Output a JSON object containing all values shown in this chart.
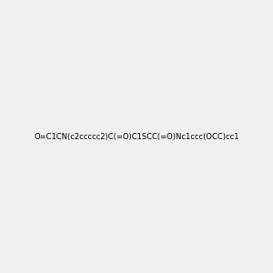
{
  "smiles": "O=C1CN(c2ccccc2)C(=O)C1SCC(=O)Nc1ccc(OCC)cc1",
  "image_size": 300,
  "background_color": "#f0f0f0",
  "title": ""
}
